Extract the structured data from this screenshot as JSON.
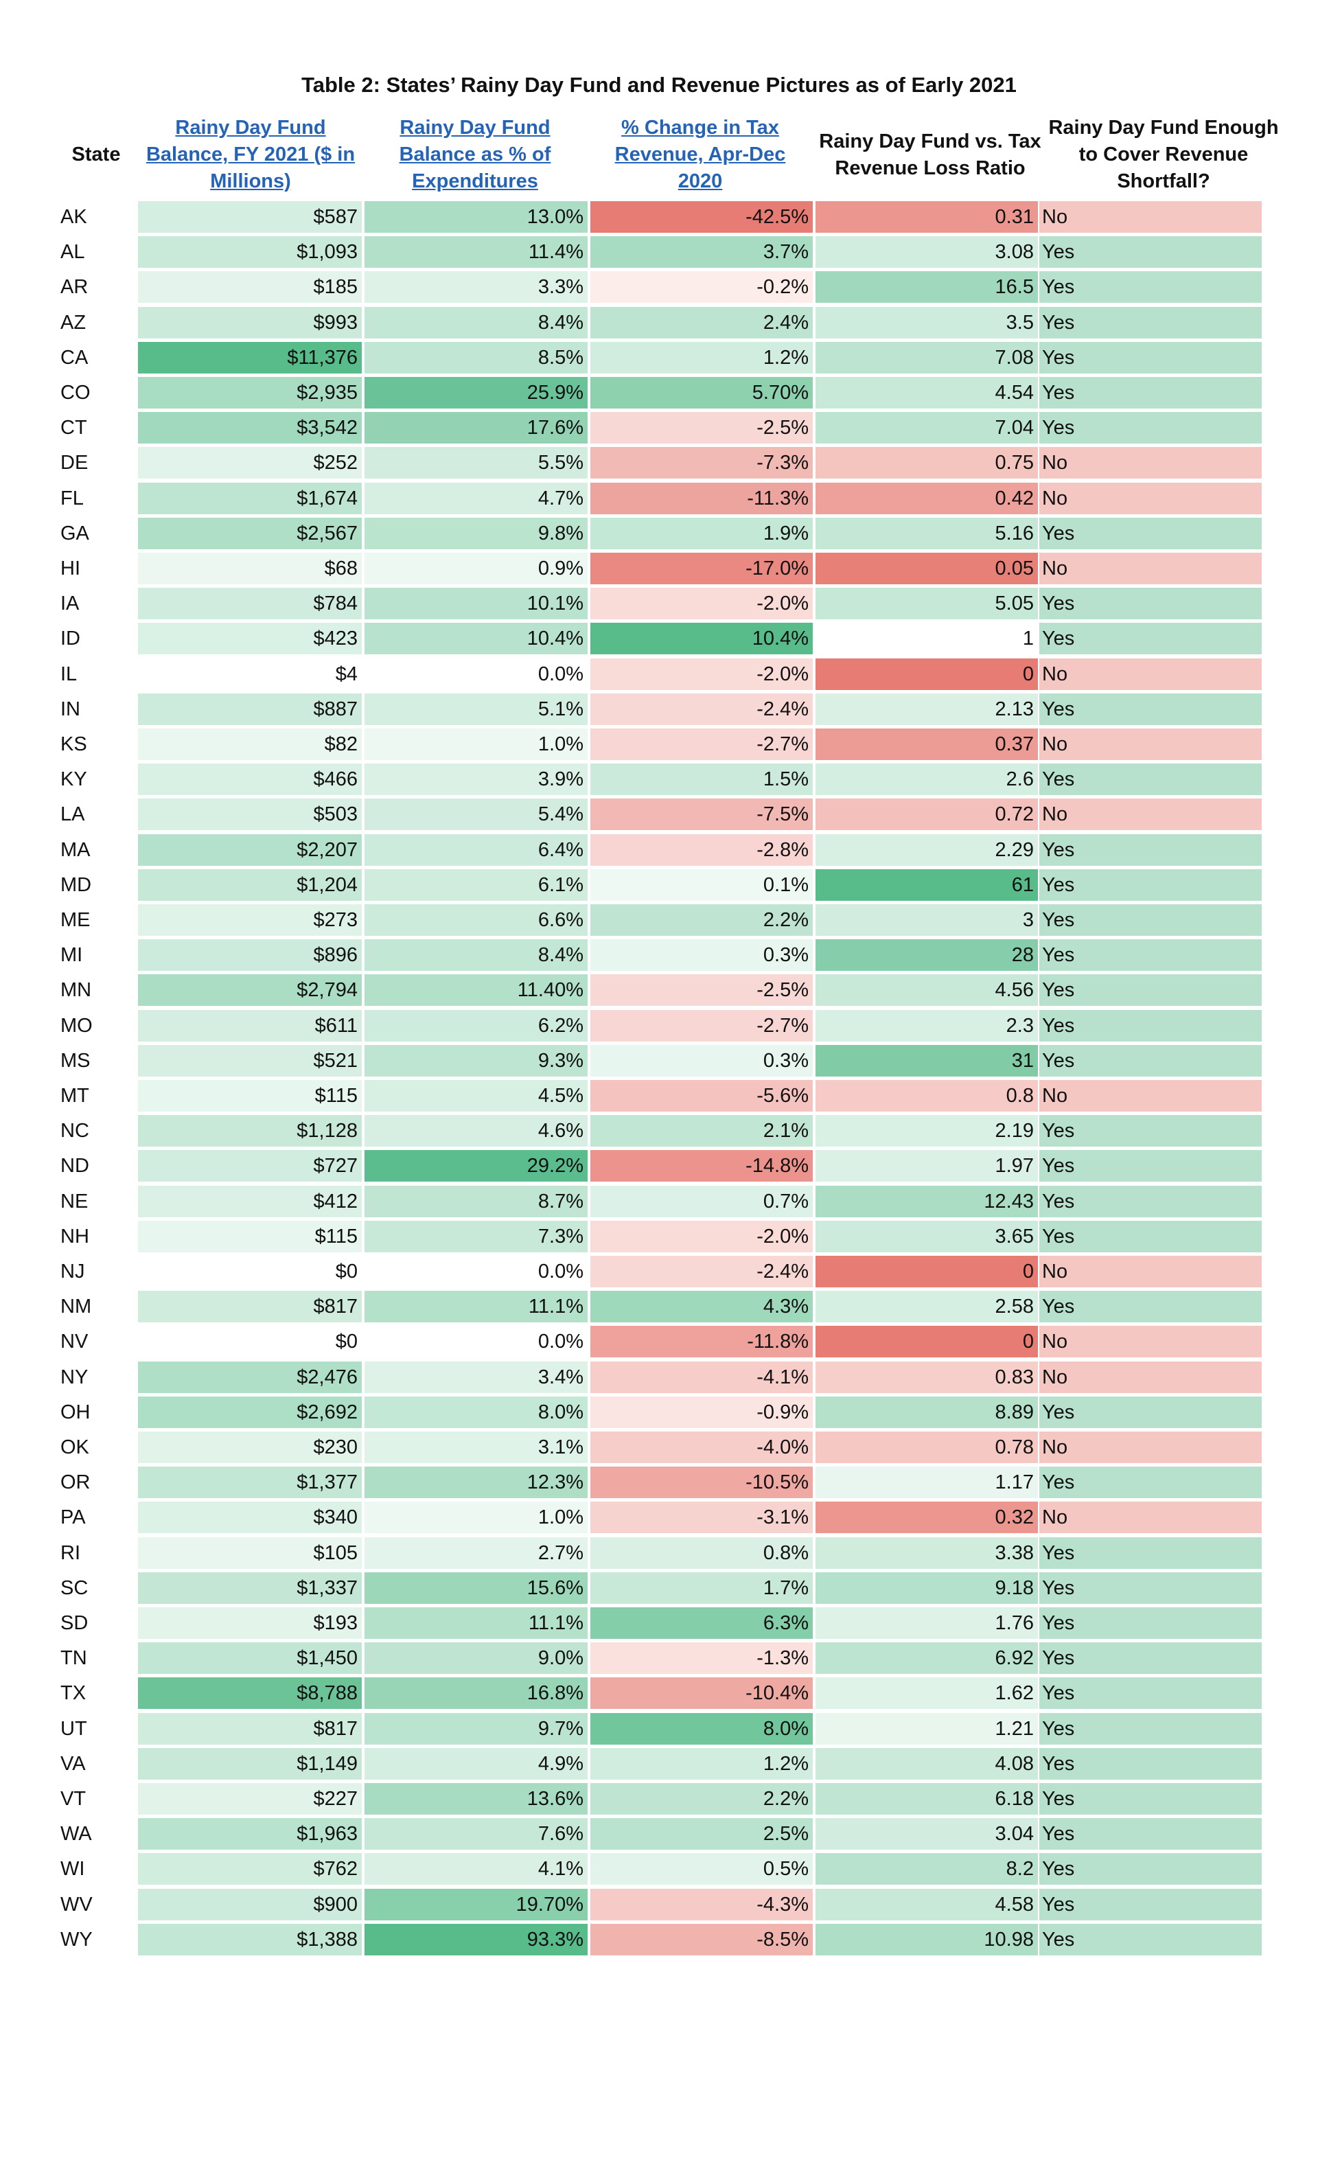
{
  "title": "Table 2: States’ Rainy Day Fund and Revenue Pictures as of Early 2021",
  "headers": {
    "state": "State",
    "balance": "Rainy Day Fund Balance, FY 2021 ($ in Millions)",
    "pct_exp": "Rainy Day Fund Balance as % of Expenditures",
    "tax_change": "% Change in Tax Revenue, Apr-Dec 2020",
    "ratio": "Rainy Day Fund vs. Tax Revenue Loss Ratio",
    "enough": "Rainy Day Fund Enough to Cover Revenue Shortfall?"
  },
  "rows": [
    {
      "state": "AK",
      "balance": "$587",
      "pct": "13.0%",
      "change": "-42.5%",
      "ratio": "0.31",
      "enough": "No"
    },
    {
      "state": "AL",
      "balance": "$1,093",
      "pct": "11.4%",
      "change": "3.7%",
      "ratio": "3.08",
      "enough": "Yes"
    },
    {
      "state": "AR",
      "balance": "$185",
      "pct": "3.3%",
      "change": "-0.2%",
      "ratio": "16.5",
      "enough": "Yes"
    },
    {
      "state": "AZ",
      "balance": "$993",
      "pct": "8.4%",
      "change": "2.4%",
      "ratio": "3.5",
      "enough": "Yes"
    },
    {
      "state": "CA",
      "balance": "$11,376",
      "pct": "8.5%",
      "change": "1.2%",
      "ratio": "7.08",
      "enough": "Yes"
    },
    {
      "state": "CO",
      "balance": "$2,935",
      "pct": "25.9%",
      "change": "5.70%",
      "ratio": "4.54",
      "enough": "Yes"
    },
    {
      "state": "CT",
      "balance": "$3,542",
      "pct": "17.6%",
      "change": "-2.5%",
      "ratio": "7.04",
      "enough": "Yes"
    },
    {
      "state": "DE",
      "balance": "$252",
      "pct": "5.5%",
      "change": "-7.3%",
      "ratio": "0.75",
      "enough": "No"
    },
    {
      "state": "FL",
      "balance": "$1,674",
      "pct": "4.7%",
      "change": "-11.3%",
      "ratio": "0.42",
      "enough": "No"
    },
    {
      "state": "GA",
      "balance": "$2,567",
      "pct": "9.8%",
      "change": "1.9%",
      "ratio": "5.16",
      "enough": "Yes"
    },
    {
      "state": "HI",
      "balance": "$68",
      "pct": "0.9%",
      "change": "-17.0%",
      "ratio": "0.05",
      "enough": "No"
    },
    {
      "state": "IA",
      "balance": "$784",
      "pct": "10.1%",
      "change": "-2.0%",
      "ratio": "5.05",
      "enough": "Yes"
    },
    {
      "state": "ID",
      "balance": "$423",
      "pct": "10.4%",
      "change": "10.4%",
      "ratio": "1",
      "enough": "Yes"
    },
    {
      "state": "IL",
      "balance": "$4",
      "pct": "0.0%",
      "change": "-2.0%",
      "ratio": "0",
      "enough": "No"
    },
    {
      "state": "IN",
      "balance": "$887",
      "pct": "5.1%",
      "change": "-2.4%",
      "ratio": "2.13",
      "enough": "Yes"
    },
    {
      "state": "KS",
      "balance": "$82",
      "pct": "1.0%",
      "change": "-2.7%",
      "ratio": "0.37",
      "enough": "No"
    },
    {
      "state": "KY",
      "balance": "$466",
      "pct": "3.9%",
      "change": "1.5%",
      "ratio": "2.6",
      "enough": "Yes"
    },
    {
      "state": "LA",
      "balance": "$503",
      "pct": "5.4%",
      "change": "-7.5%",
      "ratio": "0.72",
      "enough": "No"
    },
    {
      "state": "MA",
      "balance": "$2,207",
      "pct": "6.4%",
      "change": "-2.8%",
      "ratio": "2.29",
      "enough": "Yes"
    },
    {
      "state": "MD",
      "balance": "$1,204",
      "pct": "6.1%",
      "change": "0.1%",
      "ratio": "61",
      "enough": "Yes"
    },
    {
      "state": "ME",
      "balance": "$273",
      "pct": "6.6%",
      "change": "2.2%",
      "ratio": "3",
      "enough": "Yes"
    },
    {
      "state": "MI",
      "balance": "$896",
      "pct": "8.4%",
      "change": "0.3%",
      "ratio": "28",
      "enough": "Yes"
    },
    {
      "state": "MN",
      "balance": "$2,794",
      "pct": "11.40%",
      "change": "-2.5%",
      "ratio": "4.56",
      "enough": "Yes"
    },
    {
      "state": "MO",
      "balance": "$611",
      "pct": "6.2%",
      "change": "-2.7%",
      "ratio": "2.3",
      "enough": "Yes"
    },
    {
      "state": "MS",
      "balance": "$521",
      "pct": "9.3%",
      "change": "0.3%",
      "ratio": "31",
      "enough": "Yes"
    },
    {
      "state": "MT",
      "balance": "$115",
      "pct": "4.5%",
      "change": "-5.6%",
      "ratio": "0.8",
      "enough": "No"
    },
    {
      "state": "NC",
      "balance": "$1,128",
      "pct": "4.6%",
      "change": "2.1%",
      "ratio": "2.19",
      "enough": "Yes"
    },
    {
      "state": "ND",
      "balance": "$727",
      "pct": "29.2%",
      "change": "-14.8%",
      "ratio": "1.97",
      "enough": "Yes"
    },
    {
      "state": "NE",
      "balance": "$412",
      "pct": "8.7%",
      "change": "0.7%",
      "ratio": "12.43",
      "enough": "Yes"
    },
    {
      "state": "NH",
      "balance": "$115",
      "pct": "7.3%",
      "change": "-2.0%",
      "ratio": "3.65",
      "enough": "Yes"
    },
    {
      "state": "NJ",
      "balance": "$0",
      "pct": "0.0%",
      "change": "-2.4%",
      "ratio": "0",
      "enough": "No"
    },
    {
      "state": "NM",
      "balance": "$817",
      "pct": "11.1%",
      "change": "4.3%",
      "ratio": "2.58",
      "enough": "Yes"
    },
    {
      "state": "NV",
      "balance": "$0",
      "pct": "0.0%",
      "change": "-11.8%",
      "ratio": "0",
      "enough": "No"
    },
    {
      "state": "NY",
      "balance": "$2,476",
      "pct": "3.4%",
      "change": "-4.1%",
      "ratio": "0.83",
      "enough": "No"
    },
    {
      "state": "OH",
      "balance": "$2,692",
      "pct": "8.0%",
      "change": "-0.9%",
      "ratio": "8.89",
      "enough": "Yes"
    },
    {
      "state": "OK",
      "balance": "$230",
      "pct": "3.1%",
      "change": "-4.0%",
      "ratio": "0.78",
      "enough": "No"
    },
    {
      "state": "OR",
      "balance": "$1,377",
      "pct": "12.3%",
      "change": "-10.5%",
      "ratio": "1.17",
      "enough": "Yes"
    },
    {
      "state": "PA",
      "balance": "$340",
      "pct": "1.0%",
      "change": "-3.1%",
      "ratio": "0.32",
      "enough": "No"
    },
    {
      "state": "RI",
      "balance": "$105",
      "pct": "2.7%",
      "change": "0.8%",
      "ratio": "3.38",
      "enough": "Yes"
    },
    {
      "state": "SC",
      "balance": "$1,337",
      "pct": "15.6%",
      "change": "1.7%",
      "ratio": "9.18",
      "enough": "Yes"
    },
    {
      "state": "SD",
      "balance": "$193",
      "pct": "11.1%",
      "change": "6.3%",
      "ratio": "1.76",
      "enough": "Yes"
    },
    {
      "state": "TN",
      "balance": "$1,450",
      "pct": "9.0%",
      "change": "-1.3%",
      "ratio": "6.92",
      "enough": "Yes"
    },
    {
      "state": "TX",
      "balance": "$8,788",
      "pct": "16.8%",
      "change": "-10.4%",
      "ratio": "1.62",
      "enough": "Yes"
    },
    {
      "state": "UT",
      "balance": "$817",
      "pct": "9.7%",
      "change": "8.0%",
      "ratio": "1.21",
      "enough": "Yes"
    },
    {
      "state": "VA",
      "balance": "$1,149",
      "pct": "4.9%",
      "change": "1.2%",
      "ratio": "4.08",
      "enough": "Yes"
    },
    {
      "state": "VT",
      "balance": "$227",
      "pct": "13.6%",
      "change": "2.2%",
      "ratio": "6.18",
      "enough": "Yes"
    },
    {
      "state": "WA",
      "balance": "$1,963",
      "pct": "7.6%",
      "change": "2.5%",
      "ratio": "3.04",
      "enough": "Yes"
    },
    {
      "state": "WI",
      "balance": "$762",
      "pct": "4.1%",
      "change": "0.5%",
      "ratio": "8.2",
      "enough": "Yes"
    },
    {
      "state": "WV",
      "balance": "$900",
      "pct": "19.70%",
      "change": "-4.3%",
      "ratio": "4.58",
      "enough": "Yes"
    },
    {
      "state": "WY",
      "balance": "$1,388",
      "pct": "93.3%",
      "change": "-8.5%",
      "ratio": "10.98",
      "enough": "Yes"
    }
  ],
  "colors": {
    "green_strong": "#57bb8a",
    "green_light": "#e8f5ee",
    "red_strong": "#e67c73",
    "red_light": "#fbe9e7",
    "header_link": "#2563b6"
  }
}
